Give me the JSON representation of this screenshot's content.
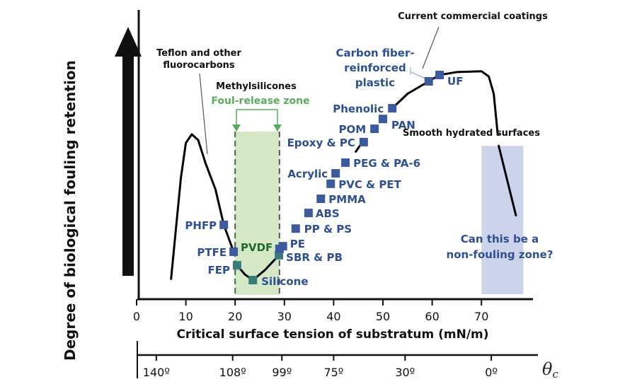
{
  "chart_data": {
    "type": "scatter",
    "title": "",
    "xlabel": "Critical surface tension of substratum (mN/m)",
    "ylabel": "Degree of biological fouling retention",
    "xlim": [
      0,
      77
    ],
    "ylim": [
      0,
      100
    ],
    "grid": false,
    "x_ticks": [
      0,
      10,
      20,
      30,
      40,
      50,
      60,
      70
    ],
    "x_tick_labels": [
      "0",
      "10",
      "20",
      "30",
      "40",
      "50",
      "60",
      "70"
    ],
    "secondary_axis": {
      "label": "θc",
      "label_sub": "c",
      "ticks": [
        {
          "x": 4,
          "label": "140º"
        },
        {
          "x": 19.5,
          "label": "108º"
        },
        {
          "x": 29.5,
          "label": "99º"
        },
        {
          "x": 40,
          "label": "75º"
        },
        {
          "x": 54.5,
          "label": "30º"
        },
        {
          "x": 72,
          "label": "0º"
        }
      ]
    },
    "series": [
      {
        "name": "Materials",
        "color": "#3c5a9e",
        "points": [
          {
            "label": "PHFP",
            "x": 17.7,
            "y": 25.7
          },
          {
            "label": "PTFE",
            "x": 19.7,
            "y": 16.4
          },
          {
            "label": "FEP",
            "x": 20.4,
            "y": 11.7
          },
          {
            "label": "Silicone",
            "x": 23.6,
            "y": 6.6
          },
          {
            "label": "SBR & PB",
            "x": 28.9,
            "y": 15.2
          },
          {
            "label": "PE",
            "x": 29.7,
            "y": 18.3
          },
          {
            "label": "PP & PS",
            "x": 32.3,
            "y": 24.4
          },
          {
            "label": "ABS",
            "x": 34.9,
            "y": 29.8
          },
          {
            "label": "PMMA",
            "x": 37.4,
            "y": 34.7
          },
          {
            "label": "PVC & PET",
            "x": 39.4,
            "y": 39.9
          },
          {
            "label": "Acrylic",
            "x": 40.4,
            "y": 43.5
          },
          {
            "label": "PEG & PA-6",
            "x": 42.4,
            "y": 47.2
          },
          {
            "label": "Epoxy & PC",
            "x": 46.1,
            "y": 54.3
          },
          {
            "label": "POM",
            "x": 48.3,
            "y": 58.9
          },
          {
            "label": "PAN",
            "x": 50.0,
            "y": 62.3
          },
          {
            "label": "Phenolic",
            "x": 51.9,
            "y": 66.0
          },
          {
            "label": "Carbon fiber-reinforced plastic",
            "x": 59.3,
            "y": 75.3
          },
          {
            "label": "UF",
            "x": 61.5,
            "y": 77.5
          }
        ]
      },
      {
        "name": "Trend curve (fluorocarbon peak)",
        "color": "#000000",
        "points": [
          {
            "x": 7.0,
            "y": 7.0
          },
          {
            "x": 9.0,
            "y": 42.0
          },
          {
            "x": 10.0,
            "y": 54.0
          },
          {
            "x": 11.2,
            "y": 57.0
          },
          {
            "x": 12.5,
            "y": 55.0
          },
          {
            "x": 14.0,
            "y": 47.0
          },
          {
            "x": 16.0,
            "y": 38.0
          },
          {
            "x": 17.7,
            "y": 25.7
          },
          {
            "x": 19.7,
            "y": 16.4
          }
        ]
      },
      {
        "name": "Trend curve (silicone valley)",
        "color": "#000000",
        "points": [
          {
            "x": 20.4,
            "y": 11.7
          },
          {
            "x": 22.0,
            "y": 8.5
          },
          {
            "x": 23.6,
            "y": 6.6
          },
          {
            "x": 26.0,
            "y": 10.0
          },
          {
            "x": 28.9,
            "y": 15.2
          }
        ]
      },
      {
        "name": "Trend curve (rise)",
        "color": "#000000",
        "points": [
          {
            "x": 44.5,
            "y": 51.0
          },
          {
            "x": 45.3,
            "y": 53.0
          }
        ]
      },
      {
        "name": "Trend curve (plateau)",
        "color": "#000000",
        "points": [
          {
            "x": 51.9,
            "y": 66.0
          },
          {
            "x": 55.0,
            "y": 71.0
          },
          {
            "x": 59.3,
            "y": 75.3
          },
          {
            "x": 61.5,
            "y": 77.5
          },
          {
            "x": 65.0,
            "y": 78.5
          },
          {
            "x": 70.0,
            "y": 78.8
          },
          {
            "x": 71.5,
            "y": 77.0
          },
          {
            "x": 72.5,
            "y": 71.0
          },
          {
            "x": 73.3,
            "y": 57.0
          }
        ]
      },
      {
        "name": "Trend curve (hydrated descent)",
        "color": "#000000",
        "points": [
          {
            "x": 73.5,
            "y": 53.0
          },
          {
            "x": 77.0,
            "y": 29.0
          }
        ]
      }
    ],
    "regions": [
      {
        "name": "Foul-release zone",
        "x_range": [
          20,
          29
        ],
        "color": "#d4e8c6",
        "border": "dashed"
      },
      {
        "name": "Non-fouling zone",
        "x_range": [
          70,
          78.5
        ],
        "y_range": [
          0,
          53
        ],
        "color": "#cdd3ea"
      }
    ],
    "annotations": {
      "teflon": "Teflon and other fluorocarbons",
      "teflon_line1": "Teflon and other",
      "teflon_line2": "fluorocarbons",
      "methylsilicones": "Methylsilicones",
      "foul_release": "Foul-release zone",
      "pvdf": "PVDF",
      "current_commercial": "Current commercial coatings",
      "carbon_fiber_line1": "Carbon fiber-",
      "carbon_fiber_line2": "reinforced",
      "carbon_fiber_line3": "plastic",
      "smooth_hydrated": "Smooth hydrated surfaces",
      "non_fouling_line1": "Can this be a",
      "non_fouling_line2": "non-fouling zone?"
    },
    "colors": {
      "marker": "#3c5a9e",
      "marker_teal": "#3a7c7a",
      "label_blue": "#2e4f93",
      "green_zone": "#d4e8c6",
      "green_text": "#5cab5c",
      "pvdf_text": "#1f6a2c",
      "blue_zone": "#cdd3ea"
    }
  }
}
